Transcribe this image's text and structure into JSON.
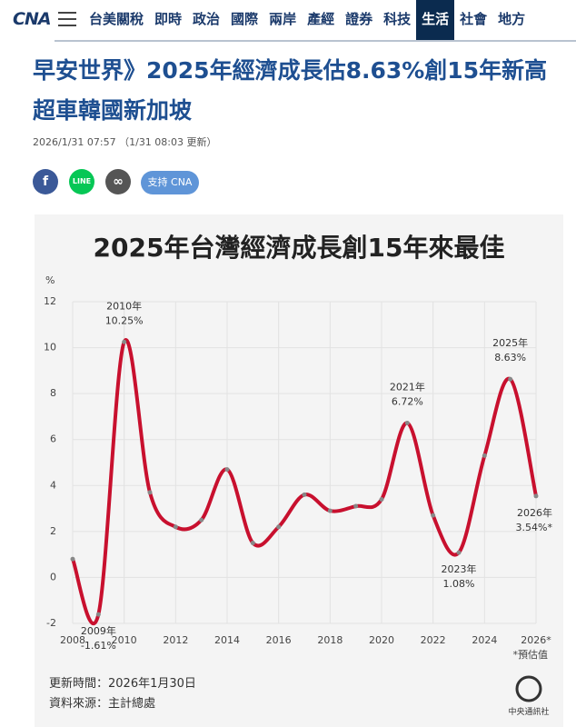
{
  "header": {
    "logo": "CNA",
    "nav": [
      "台美關稅",
      "即時",
      "政治",
      "國際",
      "兩岸",
      "產經",
      "證券",
      "科技",
      "生活",
      "社會",
      "地方"
    ],
    "active": "生活"
  },
  "article": {
    "title": "早安世界》2025年經濟成長估8.63%創15年新高　超車韓國新加坡",
    "date": "2026/1/31 07:57",
    "updated": "（1/31 08:03 更新）",
    "support": "支持 CNA"
  },
  "chart_data": {
    "type": "line",
    "title": "2025年台灣經濟成長創15年來最佳",
    "y_unit": "%",
    "x": [
      2008,
      2009,
      2010,
      2011,
      2012,
      2013,
      2014,
      2015,
      2016,
      2017,
      2018,
      2019,
      2020,
      2021,
      2022,
      2023,
      2024,
      2025,
      2026
    ],
    "values": [
      0.8,
      -1.61,
      10.25,
      3.7,
      2.2,
      2.5,
      4.7,
      1.5,
      2.2,
      3.6,
      2.9,
      3.1,
      3.4,
      6.72,
      2.7,
      1.08,
      5.3,
      8.63,
      3.54
    ],
    "value_labels": [
      null,
      "-1.61%",
      "10.25%",
      null,
      null,
      null,
      null,
      null,
      null,
      null,
      null,
      null,
      null,
      "6.72%",
      null,
      "1.08%",
      null,
      "8.63%",
      "3.54%*"
    ],
    "point_labels": [
      null,
      "2009年",
      "2010年",
      null,
      null,
      null,
      null,
      null,
      null,
      null,
      null,
      null,
      null,
      "2021年",
      null,
      "2023年",
      null,
      "2025年",
      "2026年"
    ],
    "color": "#c8102e",
    "xlim": [
      2008,
      2026
    ],
    "xticks": [
      2008,
      2010,
      2012,
      2014,
      2016,
      2018,
      2020,
      2022,
      2024,
      {
        "value": 2026,
        "label": "2026*"
      }
    ],
    "ylim": [
      -2,
      12
    ],
    "yticks": [
      -2,
      0,
      2,
      4,
      6,
      8,
      10,
      12
    ],
    "grid": true,
    "footnote": "*預估值",
    "updated": "更新時間：2026年1月30日",
    "source": "資料來源：主計總處",
    "brand": "中央通訊社"
  }
}
